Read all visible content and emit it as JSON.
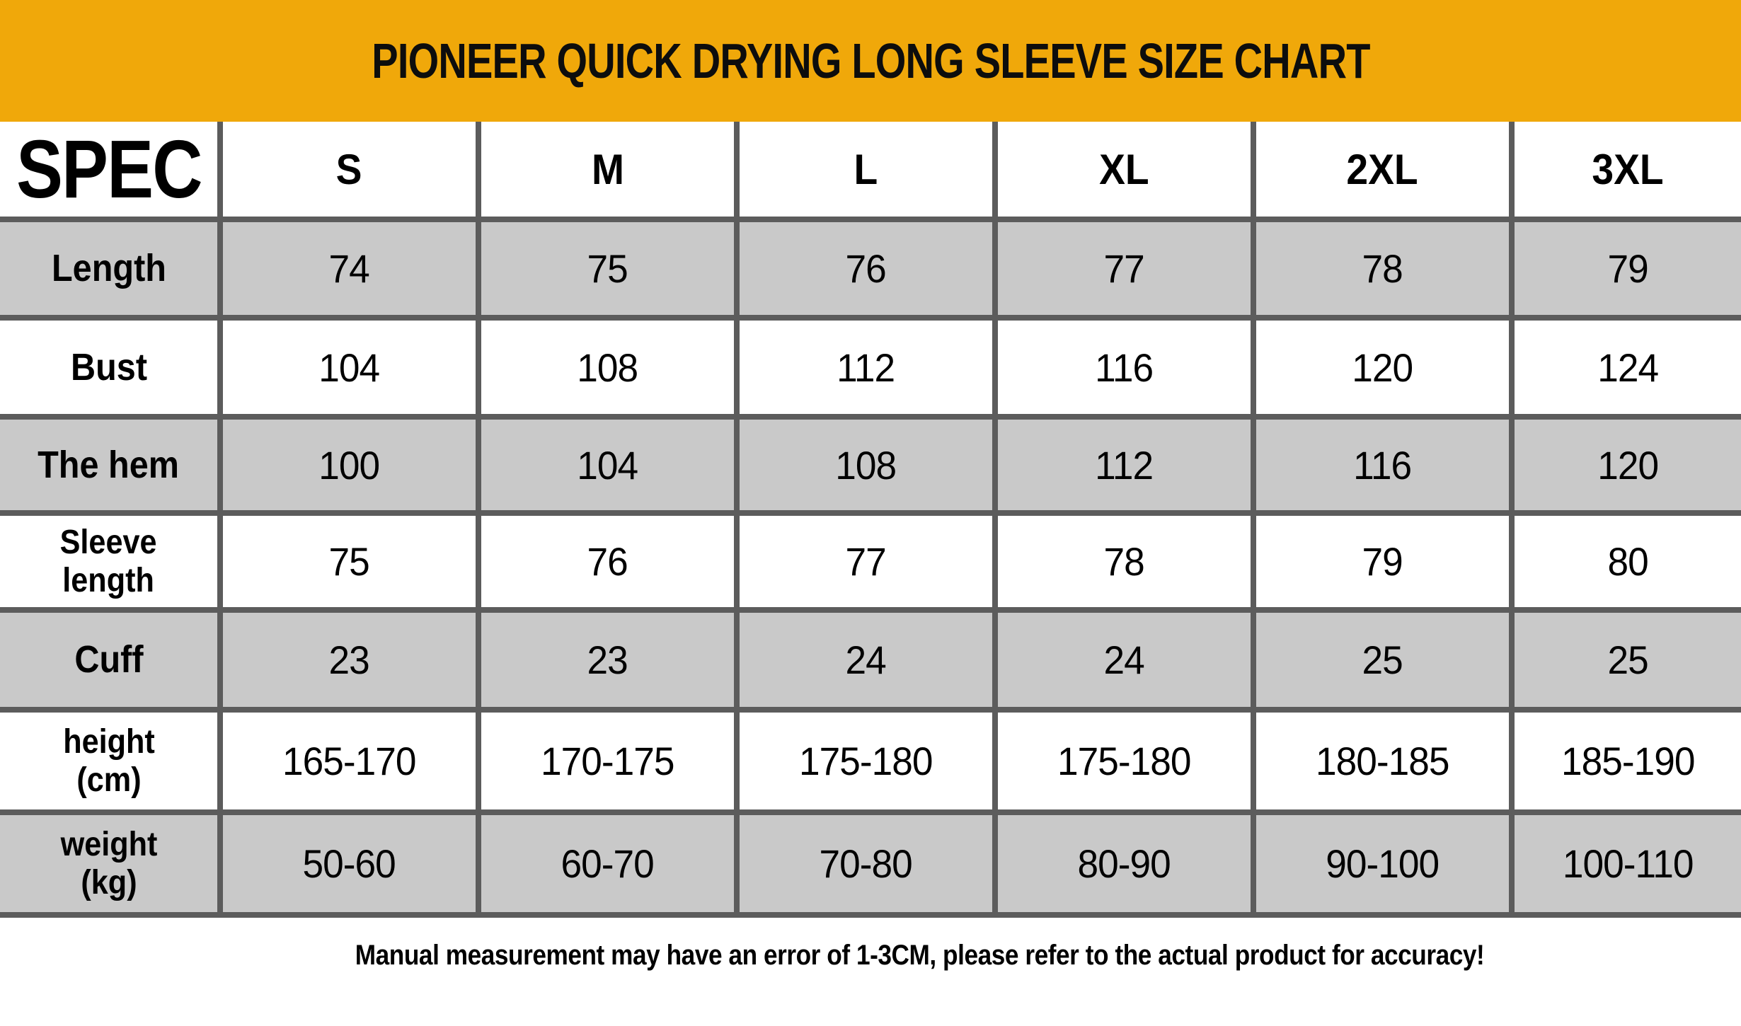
{
  "banner": {
    "title": "PIONEER QUICK DRYING LONG SLEEVE SIZE CHART",
    "bg_color": "#F0A80A"
  },
  "table": {
    "corner_label": "SPEC",
    "size_headers": [
      "S",
      "M",
      "L",
      "XL",
      "2XL",
      "3XL"
    ],
    "rows": [
      {
        "label": "Length",
        "values": [
          "74",
          "75",
          "76",
          "77",
          "78",
          "79"
        ]
      },
      {
        "label": "Bust",
        "values": [
          "104",
          "108",
          "112",
          "116",
          "120",
          "124"
        ]
      },
      {
        "label": "The hem",
        "values": [
          "100",
          "104",
          "108",
          "112",
          "116",
          "120"
        ]
      },
      {
        "label": "Sleeve\nlength",
        "values": [
          "75",
          "76",
          "77",
          "78",
          "79",
          "80"
        ]
      },
      {
        "label": "Cuff",
        "values": [
          "23",
          "23",
          "24",
          "24",
          "25",
          "25"
        ]
      },
      {
        "label": "height\n(cm)",
        "values": [
          "165-170",
          "170-175",
          "175-180",
          "175-180",
          "180-185",
          "185-190"
        ]
      },
      {
        "label": "weight\n(kg)",
        "values": [
          "50-60",
          "60-70",
          "70-80",
          "80-90",
          "90-100",
          "100-110"
        ]
      }
    ],
    "colors": {
      "row_alt_bg": "#C9C9C9",
      "grid_line": "#5C5C5C",
      "text": "#000000"
    }
  },
  "footer": {
    "note": "Manual measurement may have an error of 1-3CM, please refer to the actual product for accuracy!"
  },
  "chart_data": {
    "type": "table",
    "title": "PIONEER QUICK DRYING LONG SLEEVE SIZE CHART",
    "columns": [
      "SPEC",
      "S",
      "M",
      "L",
      "XL",
      "2XL",
      "3XL"
    ],
    "rows": [
      [
        "Length",
        "74",
        "75",
        "76",
        "77",
        "78",
        "79"
      ],
      [
        "Bust",
        "104",
        "108",
        "112",
        "116",
        "120",
        "124"
      ],
      [
        "The hem",
        "100",
        "104",
        "108",
        "112",
        "116",
        "120"
      ],
      [
        "Sleeve length",
        "75",
        "76",
        "77",
        "78",
        "79",
        "80"
      ],
      [
        "Cuff",
        "23",
        "23",
        "24",
        "24",
        "25",
        "25"
      ],
      [
        "height (cm)",
        "165-170",
        "170-175",
        "175-180",
        "175-180",
        "180-185",
        "185-190"
      ],
      [
        "weight (kg)",
        "50-60",
        "60-70",
        "70-80",
        "80-90",
        "90-100",
        "100-110"
      ]
    ],
    "note": "Manual measurement may have an error of 1-3CM, please refer to the actual product for accuracy!"
  }
}
